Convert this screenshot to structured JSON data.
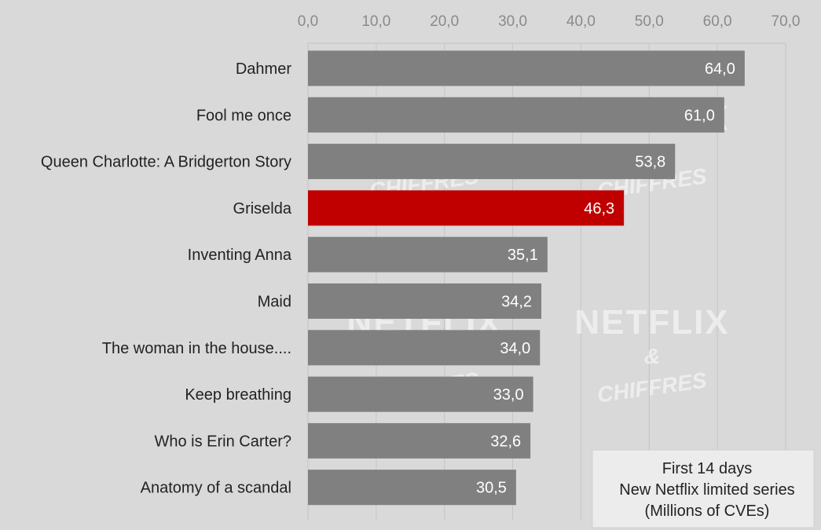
{
  "chart_data": {
    "type": "bar",
    "orientation": "horizontal",
    "categories": [
      "Dahmer",
      "Fool me once",
      "Queen Charlotte: A Bridgerton Story",
      "Griselda",
      "Inventing Anna",
      "Maid",
      "The woman in the house....",
      "Keep breathing",
      "Who is Erin Carter?",
      "Anatomy of a scandal"
    ],
    "values": [
      64.0,
      61.0,
      53.8,
      46.3,
      35.1,
      34.2,
      34.0,
      33.0,
      32.6,
      30.5
    ],
    "value_labels": [
      "64,0",
      "61,0",
      "53,8",
      "46,3",
      "35,1",
      "34,2",
      "34,0",
      "33,0",
      "32,6",
      "30,5"
    ],
    "highlight": "Griselda",
    "colors": {
      "default": "#808080",
      "highlight": "#c00000",
      "background": "#d9d9d9"
    },
    "xlim": [
      0,
      70
    ],
    "x_ticks": [
      0,
      10,
      20,
      30,
      40,
      50,
      60,
      70
    ],
    "x_tick_labels": [
      "0,0",
      "10,0",
      "20,0",
      "30,0",
      "40,0",
      "50,0",
      "60,0",
      "70,0"
    ],
    "x_axis_position": "top",
    "grid": true,
    "title": "",
    "xlabel": "",
    "ylabel": "",
    "annotation": [
      "First 14 days",
      "New Netflix limited series",
      "(Millions of CVEs)"
    ],
    "watermark": [
      "NETFLIX",
      "&",
      "CHIFFRES"
    ]
  }
}
